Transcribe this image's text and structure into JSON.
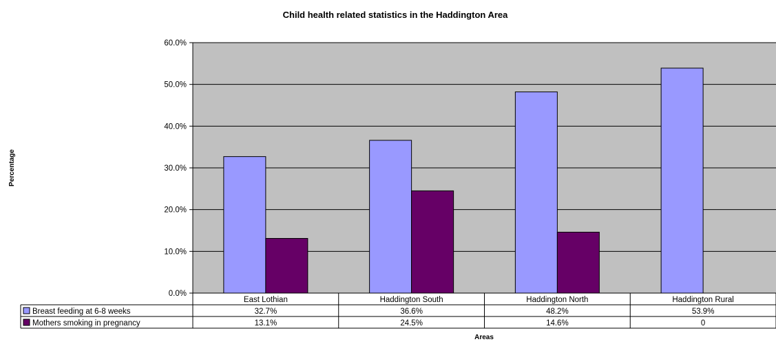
{
  "chart_data": {
    "type": "bar",
    "title": "Child health related statistics in the Haddington Area",
    "xlabel": "Areas",
    "ylabel": "Percentage",
    "categories": [
      "East Lothian",
      "Haddington South",
      "Haddington North",
      "Haddington Rural"
    ],
    "series": [
      {
        "name": "Breast feeding at 6-8 weeks",
        "values": [
          32.7,
          36.6,
          48.2,
          53.9
        ],
        "labels": [
          "32.7%",
          "36.6%",
          "48.2%",
          "53.9%"
        ],
        "color": "#9999ff"
      },
      {
        "name": "Mothers smoking in pregnancy",
        "values": [
          13.1,
          24.5,
          14.6,
          0
        ],
        "labels": [
          "13.1%",
          "24.5%",
          "14.6%",
          "0"
        ],
        "color": "#660066"
      }
    ],
    "ylim": [
      0,
      60
    ],
    "yticks": [
      0,
      10,
      20,
      30,
      40,
      50,
      60
    ],
    "ytick_labels": [
      "0.0%",
      "10.0%",
      "20.0%",
      "30.0%",
      "40.0%",
      "50.0%",
      "60.0%"
    ],
    "grid": true,
    "plot_background": "#c0c0c0",
    "data_table": true
  }
}
